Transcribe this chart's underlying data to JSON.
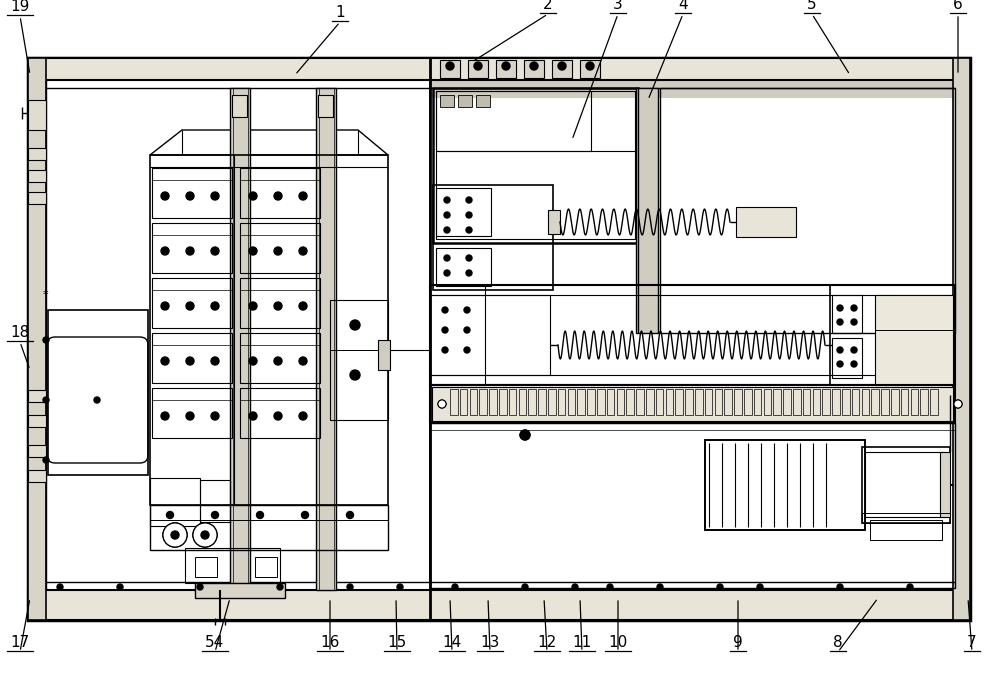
{
  "figsize": [
    10.0,
    6.96
  ],
  "dpi": 100,
  "bg": "#ffffff",
  "lc": "#000000",
  "leaders": [
    [
      "1",
      340,
      28,
      295,
      75
    ],
    [
      "2",
      548,
      20,
      472,
      62
    ],
    [
      "3",
      618,
      20,
      572,
      140
    ],
    [
      "4",
      683,
      20,
      648,
      100
    ],
    [
      "5",
      812,
      20,
      850,
      75
    ],
    [
      "6",
      958,
      20,
      958,
      75
    ],
    [
      "7",
      972,
      658,
      968,
      598
    ],
    [
      "8",
      838,
      658,
      878,
      598
    ],
    [
      "9",
      738,
      658,
      738,
      598
    ],
    [
      "10",
      618,
      658,
      618,
      598
    ],
    [
      "11",
      582,
      658,
      580,
      598
    ],
    [
      "12",
      547,
      658,
      544,
      598
    ],
    [
      "13",
      490,
      658,
      488,
      598
    ],
    [
      "14",
      452,
      658,
      450,
      598
    ],
    [
      "15",
      397,
      658,
      396,
      598
    ],
    [
      "16",
      330,
      658,
      330,
      598
    ],
    [
      "17",
      20,
      658,
      30,
      598
    ],
    [
      "18",
      20,
      348,
      30,
      370
    ],
    [
      "19",
      20,
      22,
      30,
      75
    ],
    [
      "54",
      215,
      658,
      230,
      598
    ]
  ]
}
